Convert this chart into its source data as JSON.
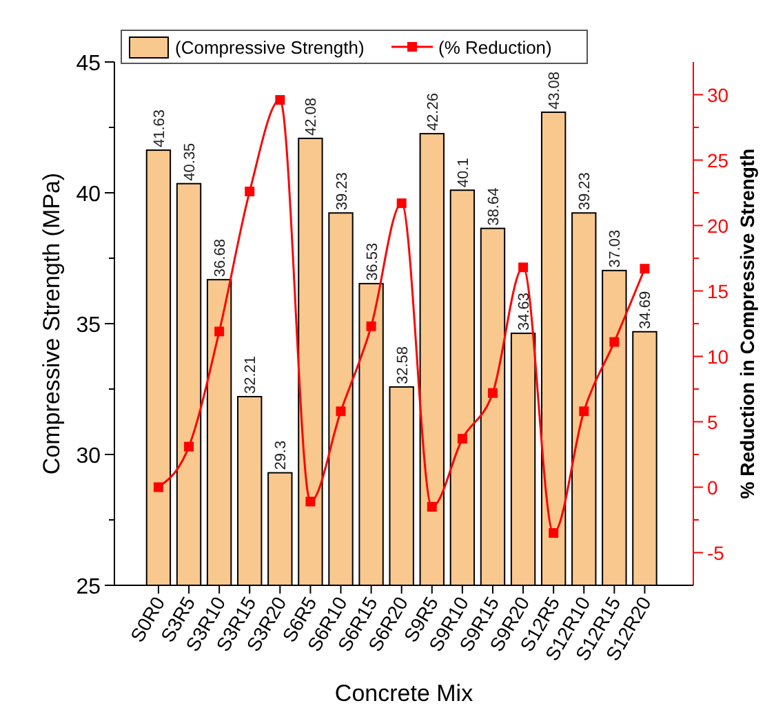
{
  "chart_data": {
    "type": "bar",
    "xlabel": "Concrete Mix",
    "ylabel": "Compressive Strength (MPa)",
    "y2label": "% Reduction in Compressive Strength",
    "categories": [
      "S0R0",
      "S3R5",
      "S3R10",
      "S3R15",
      "S3R20",
      "S6R5",
      "S6R10",
      "S6R15",
      "S6R20",
      "S9R5",
      "S9R10",
      "S9R15",
      "S9R20",
      "S12R5",
      "S12R10",
      "S12R15",
      "S12R20"
    ],
    "series": [
      {
        "name": "(Compressive Strength)",
        "color": "#f9c88e",
        "values": [
          41.63,
          40.35,
          36.68,
          32.21,
          29.3,
          42.08,
          39.23,
          36.53,
          32.58,
          42.26,
          40.1,
          38.64,
          34.63,
          43.08,
          39.23,
          37.03,
          34.69
        ],
        "value_labels": [
          "41.63",
          "40.35",
          "36.68",
          "32.21",
          "29.3",
          "42.08",
          "39.23",
          "36.53",
          "32.58",
          "42.26",
          "40.1",
          "38.64",
          "34.63",
          "43.08",
          "39.23",
          "37.03",
          "34.69"
        ]
      },
      {
        "name": "(% Reduction)",
        "type": "line",
        "axis": "y2",
        "color": "#ff0000",
        "marker": "square",
        "line_style": "solid",
        "values": [
          0,
          3.1,
          11.9,
          22.6,
          29.6,
          -1.1,
          5.8,
          12.3,
          21.7,
          -1.5,
          3.7,
          7.2,
          16.8,
          -3.5,
          5.8,
          11.1,
          16.7
        ]
      }
    ],
    "legend": "top left",
    "ylim": [
      25,
      45
    ],
    "yticks": [
      25,
      {
        "value": 27.5,
        "label": null
      },
      30,
      {
        "value": 32.5,
        "label": null
      },
      35,
      {
        "value": 37.5,
        "label": null
      },
      40,
      {
        "value": 42.5,
        "label": null
      },
      45
    ],
    "y2lim": [
      -7.5,
      32.5
    ],
    "y2ticks": [
      -5,
      {
        "value": -2.5,
        "label": null
      },
      0,
      {
        "value": 2.5,
        "label": null
      },
      5,
      {
        "value": 7.5,
        "label": null
      },
      10,
      {
        "value": 12.5,
        "label": null
      },
      15,
      {
        "value": 17.5,
        "label": null
      },
      20,
      {
        "value": 22.5,
        "label": null
      },
      25,
      {
        "value": 27.5,
        "label": null
      },
      30
    ]
  }
}
